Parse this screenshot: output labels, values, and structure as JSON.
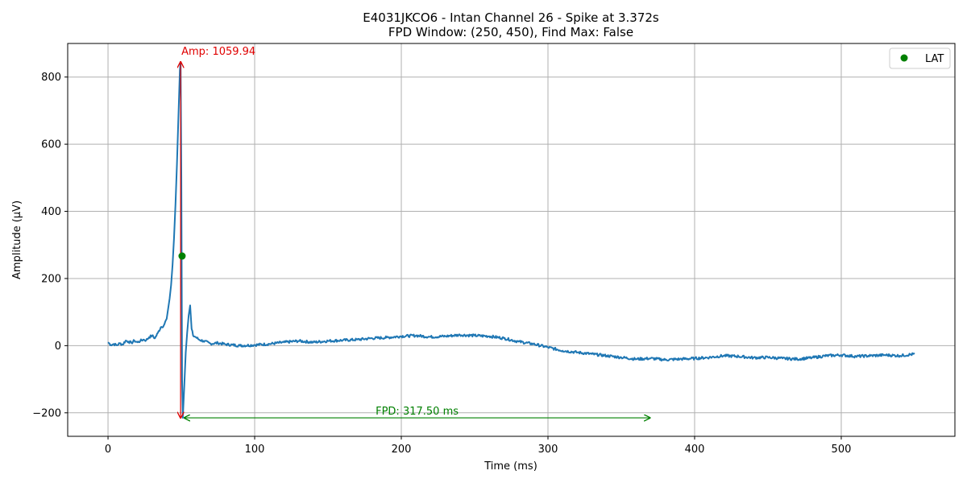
{
  "chart_data": {
    "type": "line",
    "title_line1": "E4031JKCO6 - Intan Channel 26 - Spike at 3.372s",
    "title_line2": "FPD Window: (250, 450), Find Max: False",
    "xlabel": "Time (ms)",
    "ylabel": "Amplitude (μV)",
    "xlim": [
      -27.5,
      577.5
    ],
    "ylim": [
      -270,
      900
    ],
    "x_ticks": [
      0,
      100,
      200,
      300,
      400,
      500
    ],
    "y_ticks": [
      -200,
      0,
      200,
      400,
      600,
      800
    ],
    "grid": true,
    "legend": {
      "placement": "top-right",
      "entries": [
        {
          "label": "LAT",
          "color": "#008000",
          "marker": "circle"
        }
      ]
    },
    "series": [
      {
        "color": "#1f77b4",
        "x": [
          0,
          2,
          4,
          6,
          8,
          10,
          12,
          14,
          16,
          18,
          20,
          22,
          24,
          26,
          28,
          30,
          32,
          34,
          36,
          38,
          40,
          42,
          43,
          44,
          45,
          46,
          47,
          48,
          49,
          49.5,
          50,
          50.5,
          51,
          52,
          53,
          54,
          55,
          56,
          57,
          58,
          60,
          62,
          65,
          70,
          75,
          80,
          90,
          100,
          110,
          120,
          130,
          140,
          150,
          160,
          170,
          180,
          190,
          200,
          210,
          220,
          230,
          240,
          250,
          260,
          270,
          280,
          290,
          300,
          310,
          320,
          330,
          340,
          350,
          360,
          370,
          380,
          390,
          400,
          410,
          420,
          430,
          440,
          450,
          460,
          470,
          480,
          490,
          500,
          510,
          520,
          530,
          540,
          550
        ],
        "y": [
          10,
          2,
          5,
          1,
          7,
          3,
          15,
          12,
          8,
          15,
          10,
          14,
          18,
          16,
          25,
          30,
          22,
          38,
          55,
          60,
          80,
          140,
          180,
          240,
          320,
          420,
          540,
          680,
          820,
          845,
          500,
          -100,
          -215,
          -120,
          -20,
          40,
          90,
          120,
          50,
          30,
          25,
          18,
          14,
          6,
          8,
          4,
          0,
          2,
          5,
          10,
          14,
          10,
          14,
          16,
          18,
          22,
          24,
          28,
          30,
          26,
          28,
          32,
          30,
          28,
          22,
          12,
          5,
          -5,
          -15,
          -20,
          -25,
          -30,
          -35,
          -40,
          -38,
          -42,
          -40,
          -38,
          -35,
          -30,
          -32,
          -36,
          -35,
          -38,
          -40,
          -36,
          -30,
          -28,
          -32,
          -30,
          -28,
          -30,
          -25
        ]
      }
    ],
    "lat_point": {
      "x": 50.5,
      "y": 267
    },
    "amp_annotation": {
      "text": "Amp: 1059.94",
      "x": 49.5,
      "y_from": -215,
      "y_to": 845,
      "color": "#e00000"
    },
    "fpd_annotation": {
      "text": "FPD: 317.50 ms",
      "x_from": 52,
      "x_to": 369.5,
      "y": -215,
      "color": "#008000"
    }
  }
}
